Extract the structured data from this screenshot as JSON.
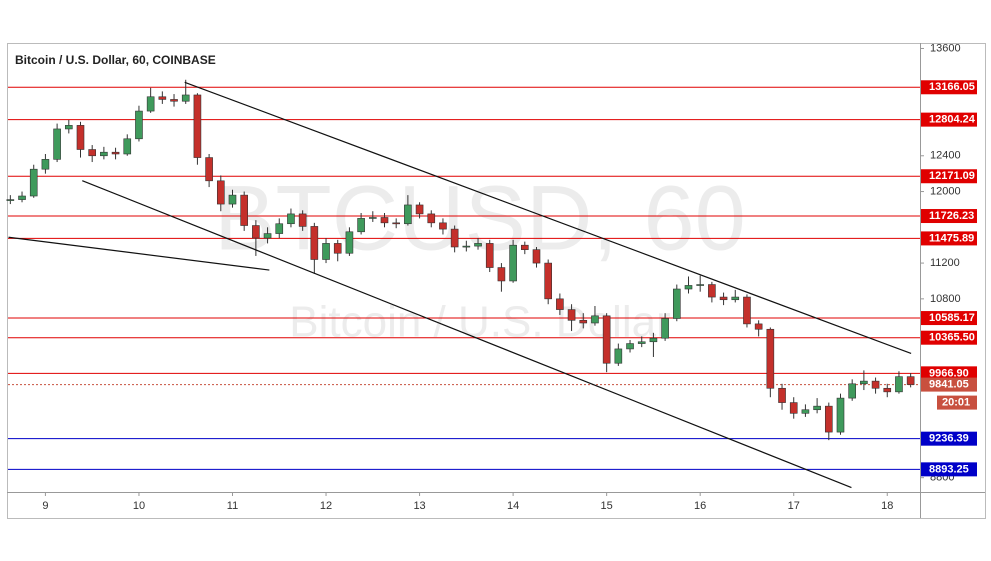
{
  "chart_data": {
    "type": "candlestick",
    "title": "Bitcoin / U.S. Dollar, 60, COINBASE",
    "watermark": "BTCUSD, 60",
    "watermark_subtitle": "Bitcoin / U.S. Dollar",
    "up_color": "#3f9a5c",
    "down_color": "#c4302b",
    "xlim": [
      8.6,
      18.35
    ],
    "xticks": [
      9,
      10,
      11,
      12,
      13,
      14,
      15,
      16,
      17,
      18
    ],
    "ylim": [
      8640,
      13650
    ],
    "yticks": [
      13600,
      12400,
      12000,
      11200,
      10800,
      8800
    ],
    "x": [
      8.625,
      8.75,
      8.875,
      9,
      9.125,
      9.25,
      9.375,
      9.5,
      9.625,
      9.75,
      9.875,
      10,
      10.125,
      10.25,
      10.375,
      10.5,
      10.625,
      10.75,
      10.875,
      11,
      11.125,
      11.25,
      11.375,
      11.5,
      11.625,
      11.75,
      11.875,
      12,
      12.125,
      12.25,
      12.375,
      12.5,
      12.625,
      12.75,
      12.875,
      13,
      13.125,
      13.25,
      13.375,
      13.5,
      13.625,
      13.75,
      13.875,
      14,
      14.125,
      14.25,
      14.375,
      14.5,
      14.625,
      14.75,
      14.875,
      15,
      15.125,
      15.25,
      15.375,
      15.5,
      15.625,
      15.75,
      15.875,
      16,
      16.125,
      16.25,
      16.375,
      16.5,
      16.625,
      16.75,
      16.875,
      17,
      17.125,
      17.25,
      17.375,
      17.5,
      17.625,
      17.75,
      17.875,
      18,
      18.125,
      18.25
    ],
    "ohlc": [
      [
        11900,
        11960,
        11860,
        11910
      ],
      [
        11910,
        12000,
        11880,
        11950
      ],
      [
        11950,
        12300,
        11930,
        12250
      ],
      [
        12250,
        12420,
        12200,
        12360
      ],
      [
        12360,
        12760,
        12330,
        12700
      ],
      [
        12700,
        12800,
        12650,
        12740
      ],
      [
        12740,
        12780,
        12380,
        12470
      ],
      [
        12470,
        12520,
        12330,
        12400
      ],
      [
        12400,
        12500,
        12360,
        12440
      ],
      [
        12440,
        12490,
        12360,
        12420
      ],
      [
        12420,
        12640,
        12400,
        12590
      ],
      [
        12590,
        12960,
        12560,
        12900
      ],
      [
        12900,
        13160,
        12880,
        13060
      ],
      [
        13060,
        13120,
        12980,
        13030
      ],
      [
        13030,
        13090,
        12950,
        13010
      ],
      [
        13010,
        13250,
        12980,
        13080
      ],
      [
        13080,
        13100,
        12300,
        12380
      ],
      [
        12380,
        12420,
        12050,
        12120
      ],
      [
        12120,
        12180,
        11780,
        11860
      ],
      [
        11860,
        12020,
        11820,
        11960
      ],
      [
        11960,
        12000,
        11560,
        11620
      ],
      [
        11620,
        11680,
        11280,
        11480
      ],
      [
        11480,
        11600,
        11420,
        11530
      ],
      [
        11530,
        11700,
        11480,
        11640
      ],
      [
        11640,
        11810,
        11600,
        11750
      ],
      [
        11750,
        11790,
        11560,
        11610
      ],
      [
        11610,
        11650,
        11080,
        11240
      ],
      [
        11240,
        11480,
        11200,
        11420
      ],
      [
        11420,
        11460,
        11220,
        11310
      ],
      [
        11310,
        11600,
        11280,
        11550
      ],
      [
        11550,
        11760,
        11520,
        11700
      ],
      [
        11700,
        11780,
        11660,
        11710
      ],
      [
        11710,
        11760,
        11600,
        11650
      ],
      [
        11650,
        11700,
        11590,
        11640
      ],
      [
        11640,
        11960,
        11620,
        11850
      ],
      [
        11850,
        11880,
        11700,
        11750
      ],
      [
        11750,
        11790,
        11600,
        11650
      ],
      [
        11650,
        11700,
        11520,
        11580
      ],
      [
        11580,
        11620,
        11320,
        11380
      ],
      [
        11380,
        11450,
        11330,
        11390
      ],
      [
        11390,
        11480,
        11350,
        11420
      ],
      [
        11420,
        11460,
        11100,
        11150
      ],
      [
        11150,
        11200,
        10880,
        11000
      ],
      [
        11000,
        11460,
        10980,
        11400
      ],
      [
        11400,
        11440,
        11300,
        11350
      ],
      [
        11350,
        11380,
        11150,
        11200
      ],
      [
        11200,
        11240,
        10740,
        10800
      ],
      [
        10800,
        10860,
        10620,
        10680
      ],
      [
        10680,
        10740,
        10440,
        10560
      ],
      [
        10560,
        10640,
        10470,
        10530
      ],
      [
        10530,
        10720,
        10500,
        10610
      ],
      [
        10610,
        10640,
        9980,
        10080
      ],
      [
        10080,
        10300,
        10050,
        10240
      ],
      [
        10240,
        10340,
        10200,
        10300
      ],
      [
        10300,
        10380,
        10260,
        10320
      ],
      [
        10320,
        10420,
        10150,
        10360
      ],
      [
        10360,
        10640,
        10330,
        10580
      ],
      [
        10580,
        10960,
        10550,
        10910
      ],
      [
        10910,
        11050,
        10860,
        10950
      ],
      [
        10950,
        11060,
        10880,
        10960
      ],
      [
        10960,
        10990,
        10760,
        10820
      ],
      [
        10820,
        10870,
        10730,
        10790
      ],
      [
        10790,
        10900,
        10760,
        10820
      ],
      [
        10820,
        10850,
        10480,
        10520
      ],
      [
        10520,
        10560,
        10380,
        10460
      ],
      [
        10460,
        10480,
        9700,
        9800
      ],
      [
        9800,
        9850,
        9560,
        9640
      ],
      [
        9640,
        9700,
        9460,
        9520
      ],
      [
        9520,
        9620,
        9480,
        9560
      ],
      [
        9560,
        9690,
        9520,
        9600
      ],
      [
        9600,
        9640,
        9220,
        9310
      ],
      [
        9310,
        9740,
        9280,
        9690
      ],
      [
        9690,
        9900,
        9660,
        9850
      ],
      [
        9850,
        10000,
        9780,
        9880
      ],
      [
        9880,
        9920,
        9740,
        9800
      ],
      [
        9800,
        9850,
        9700,
        9760
      ],
      [
        9760,
        9990,
        9740,
        9930
      ],
      [
        9930,
        9970,
        9810,
        9841.05
      ]
    ],
    "levels": [
      {
        "value": 13166.05,
        "label": "13166.05",
        "color": "#e00000"
      },
      {
        "value": 12804.24,
        "label": "12804.24",
        "color": "#e00000"
      },
      {
        "value": 12171.09,
        "label": "12171.09",
        "color": "#e00000"
      },
      {
        "value": 11726.23,
        "label": "11726.23",
        "color": "#e00000"
      },
      {
        "value": 11475.89,
        "label": "11475.89",
        "color": "#e00000"
      },
      {
        "value": 10585.17,
        "label": "10585.17",
        "color": "#e00000"
      },
      {
        "value": 10365.5,
        "label": "10365.50",
        "color": "#e00000"
      },
      {
        "value": 9966.9,
        "label": "9966.90",
        "color": "#e00000"
      },
      {
        "value": 9236.39,
        "label": "9236.39",
        "color": "#0000c8"
      },
      {
        "value": 8893.25,
        "label": "8893.25",
        "color": "#0000c8"
      }
    ],
    "last_price": {
      "value": 9841.05,
      "label": "9841.05",
      "color": "#c8503f"
    },
    "countdown": "20:01",
    "trendlines": [
      {
        "x1": 10.489,
        "y1": 13222,
        "x2": 18.255,
        "y2": 10189
      },
      {
        "x1": 9.394,
        "y1": 12122,
        "x2": 17.617,
        "y2": 8689
      },
      {
        "x1": 8.606,
        "y1": 11489,
        "x2": 11.394,
        "y2": 11122
      }
    ]
  }
}
